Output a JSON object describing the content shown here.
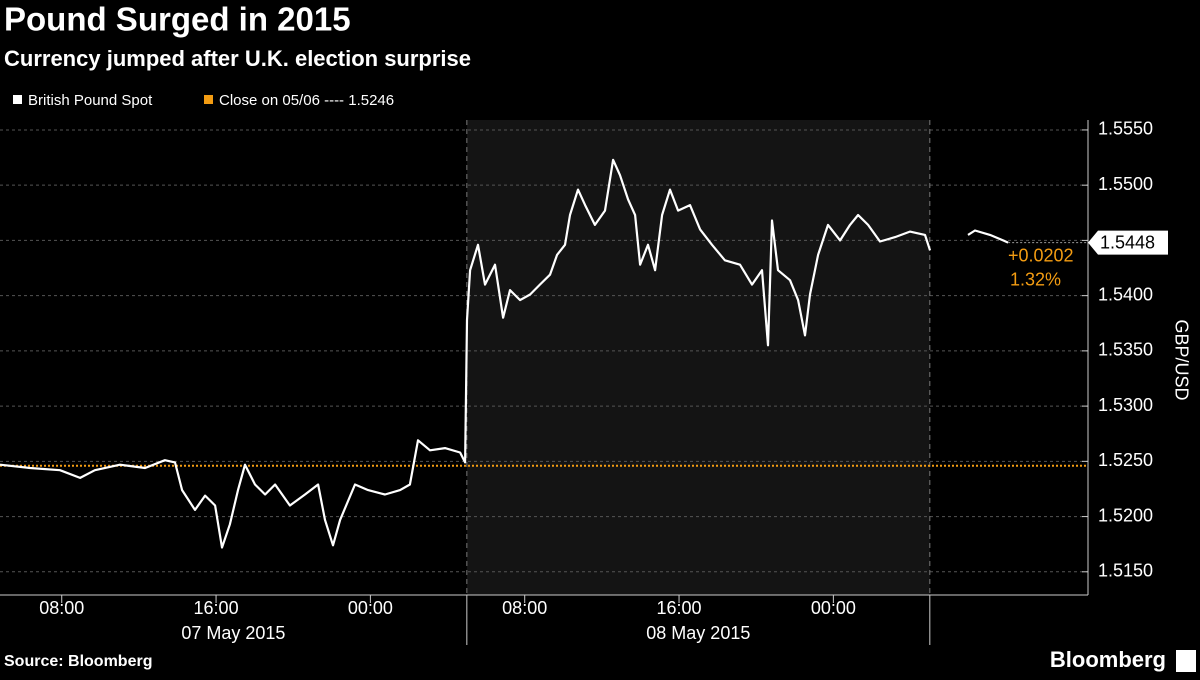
{
  "chart_data": {
    "type": "line",
    "title": "Pound Surged in 2015",
    "subtitle": "Currency jumped after U.K. election surprise",
    "y_label": "GBP/USD",
    "source": "Source: Bloomberg",
    "brand": "Bloomberg",
    "x": [
      4.8,
      6.36,
      7.91,
      8.95,
      9.72,
      11.02,
      12.32,
      13.35,
      13.87,
      14.24,
      14.91,
      15.43,
      15.95,
      16.31,
      16.72,
      17.14,
      17.5,
      18.02,
      18.54,
      19.06,
      19.83,
      20.61,
      21.29,
      21.65,
      22.06,
      22.43,
      23.2,
      23.88,
      24.76,
      25.54,
      26.05,
      26.47,
      27.09,
      27.87,
      28.65,
      28.91,
      29.01,
      29.17,
      29.58,
      29.94,
      30.46,
      30.88,
      31.24,
      31.76,
      32.28,
      32.79,
      33.31,
      33.68,
      34.09,
      34.35,
      34.76,
      35.13,
      35.64,
      36.16,
      36.58,
      36.94,
      37.36,
      37.72,
      37.98,
      38.39,
      38.76,
      39.12,
      39.53,
      39.95,
      40.57,
      41.09,
      41.71,
      42.38,
      43.16,
      43.78,
      44.3,
      44.61,
      44.82,
      45.13,
      45.75,
      46.17,
      46.53,
      46.79,
      47.21,
      47.72,
      48.35,
      48.86,
      49.28,
      49.8,
      50.42,
      51.2,
      51.97,
      52.75,
      53.01,
      54.0,
      54.98,
      55.34,
      56.12,
      56.8,
      57.06
    ],
    "series": [
      {
        "name": "British Pound Spot",
        "color": "#ffffff",
        "values": [
          1.5247,
          1.5244,
          1.5242,
          1.5235,
          1.5242,
          1.5247,
          1.5244,
          1.5251,
          1.5249,
          1.5224,
          1.5206,
          1.5219,
          1.521,
          1.5172,
          1.5193,
          1.5224,
          1.5247,
          1.5229,
          1.522,
          1.5229,
          1.521,
          1.522,
          1.5229,
          1.5197,
          1.5174,
          1.5197,
          1.5229,
          1.5224,
          1.522,
          1.5224,
          1.5229,
          1.5269,
          1.526,
          1.5262,
          1.5258,
          1.5249,
          1.5378,
          1.5423,
          1.5446,
          1.541,
          1.5428,
          1.538,
          1.5405,
          1.5396,
          1.5401,
          1.541,
          1.5419,
          1.5437,
          1.5446,
          1.5473,
          1.5496,
          1.5482,
          1.5464,
          1.5477,
          1.5523,
          1.5509,
          1.5487,
          1.5473,
          1.5428,
          1.5446,
          1.5423,
          1.5473,
          1.5496,
          1.5477,
          1.5482,
          1.546,
          1.5446,
          1.5432,
          1.5428,
          1.541,
          1.5423,
          1.5355,
          1.5468,
          1.5423,
          1.5414,
          1.5396,
          1.5364,
          1.5401,
          1.5437,
          1.5464,
          1.545,
          1.5464,
          1.5473,
          1.5464,
          1.5449,
          1.5453,
          1.5458,
          1.5455,
          1.5441,
          null,
          1.5455,
          1.5459,
          1.5455,
          1.545,
          1.5448
        ]
      }
    ],
    "reference": {
      "name": "Close on 05/06 ---- 1.5246",
      "value": 1.5246,
      "color": "#f39c12"
    },
    "change_labels": [
      "+0.0202",
      "1.32%"
    ],
    "xlim": [
      4.8,
      61.2
    ],
    "xticks": [
      {
        "value": 8,
        "label": "08:00"
      },
      {
        "value": 16,
        "label": "16:00"
      },
      {
        "value": 24,
        "label": "00:00"
      },
      {
        "value": 32,
        "label": "08:00"
      },
      {
        "value": 40,
        "label": "16:00"
      },
      {
        "value": 48,
        "label": "00:00"
      }
    ],
    "dividers": [
      29,
      53
    ],
    "day_labels": [
      "07 May 2015",
      "08 May 2015"
    ],
    "ylim": [
      1.5129,
      1.5559
    ],
    "yticks": [
      {
        "value": 1.515,
        "label": "1.5150"
      },
      {
        "value": 1.52,
        "label": "1.5200"
      },
      {
        "value": 1.525,
        "label": "1.5250"
      },
      {
        "value": 1.53,
        "label": "1.5300"
      },
      {
        "value": 1.535,
        "label": "1.5350"
      },
      {
        "value": 1.54,
        "label": "1.5400"
      },
      {
        "value": 1.545,
        "label": "1.5450"
      },
      {
        "value": 1.55,
        "label": "1.5500"
      },
      {
        "value": 1.555,
        "label": "1.5550"
      }
    ],
    "grid": true
  }
}
